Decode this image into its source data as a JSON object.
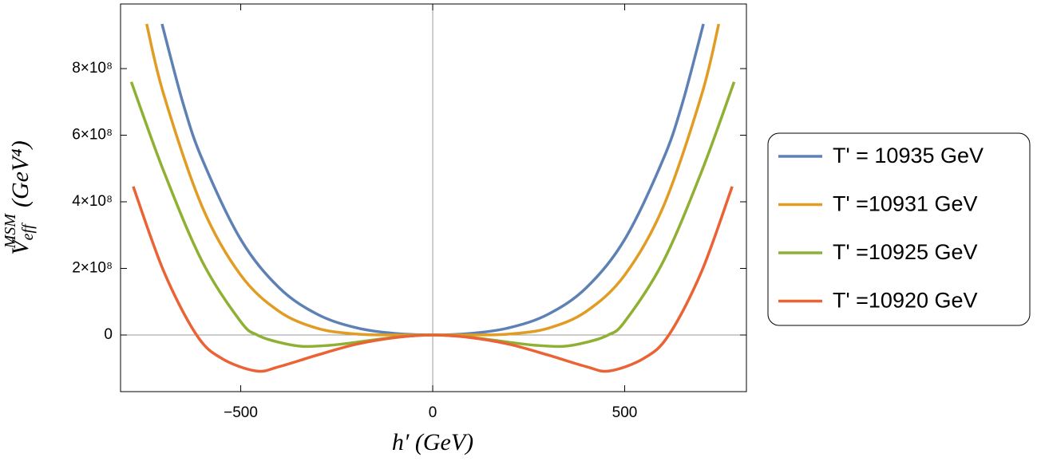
{
  "chart_data": {
    "type": "line",
    "x_label": "h′ (GeV)",
    "y_label": {
      "symbol": "V",
      "sub": "eff",
      "sup": "MSM",
      "unit": "(GeV⁴)"
    },
    "xlim": [
      -813,
      817
    ],
    "ylim": [
      -170000000,
      994000000
    ],
    "xticks": [
      {
        "value": -500,
        "label": "−500"
      },
      0,
      500
    ],
    "yticks": [
      0,
      {
        "value": 200000000,
        "label": "2×10⁸"
      },
      {
        "value": 400000000,
        "label": "4×10⁸"
      },
      {
        "value": 600000000,
        "label": "6×10⁸"
      },
      {
        "value": 800000000,
        "label": "8×10⁸"
      }
    ],
    "legend_position": "right",
    "series": [
      {
        "name": "T' = 10935 GeV",
        "color": "#5e81b5",
        "x": [
          -705,
          -650,
          -600,
          -500,
          -400,
          -300,
          -200,
          -100,
          0,
          100,
          200,
          300,
          400,
          500,
          600,
          650,
          705
        ],
        "values": [
          934000000,
          695000000,
          527000000,
          287000000,
          142000000,
          62000000,
          22000000,
          5000000,
          0,
          5000000,
          22000000,
          62000000,
          142000000,
          287000000,
          527000000,
          695000000,
          934000000
        ]
      },
      {
        "name": "T' =10931 GeV",
        "color": "#e19c24",
        "x": [
          -745,
          -700,
          -600,
          -500,
          -400,
          -300,
          -200,
          -100,
          0,
          100,
          200,
          300,
          400,
          500,
          600,
          700,
          745
        ],
        "values": [
          934000000,
          720000000,
          384000000,
          180000000,
          71000000,
          20000000,
          3000000,
          0,
          0,
          0,
          3000000,
          20000000,
          71000000,
          180000000,
          384000000,
          720000000,
          934000000
        ]
      },
      {
        "name": "T' =10925 GeV",
        "color": "#8fb032",
        "x": [
          -785,
          -700,
          -600,
          -500,
          -457,
          -400,
          -340,
          -270,
          -200,
          -100,
          0,
          100,
          200,
          270,
          340,
          400,
          457,
          500,
          600,
          700,
          785
        ],
        "values": [
          760000000,
          490000000,
          220000000,
          40000000,
          0,
          -22000000,
          -34000000,
          -31000000,
          -22000000,
          -7000000,
          0,
          -7000000,
          -22000000,
          -31000000,
          -34000000,
          -22000000,
          0,
          40000000,
          220000000,
          490000000,
          760000000
        ]
      },
      {
        "name": "T' =10920 GeV",
        "color": "#eb6235",
        "x": [
          -780,
          -700,
          -615,
          -550,
          -460,
          -400,
          -300,
          -200,
          -100,
          0,
          100,
          200,
          300,
          400,
          460,
          550,
          615,
          700,
          780
        ],
        "values": [
          446000000,
          190000000,
          0,
          -70000000,
          -108000000,
          -95000000,
          -60000000,
          -28000000,
          -8000000,
          0,
          -8000000,
          -28000000,
          -60000000,
          -95000000,
          -108000000,
          -70000000,
          0,
          190000000,
          446000000
        ]
      }
    ]
  }
}
